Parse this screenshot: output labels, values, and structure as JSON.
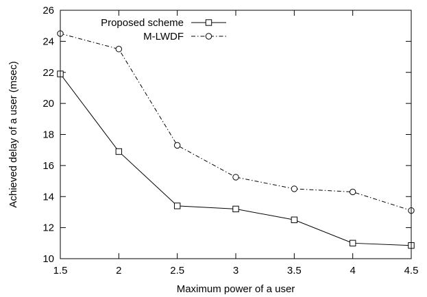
{
  "chart_data": {
    "type": "line",
    "title": "",
    "xlabel": "Maximum power of a user",
    "ylabel": "Achieved delay of a user (msec)",
    "xlim": [
      1.5,
      4.5
    ],
    "ylim": [
      10,
      26
    ],
    "xticks": [
      "1.5",
      "2",
      "2.5",
      "3",
      "3.5",
      "4",
      "4.5"
    ],
    "yticks": [
      "10",
      "12",
      "14",
      "16",
      "18",
      "20",
      "22",
      "24",
      "26"
    ],
    "grid": false,
    "legend_position": "top-left",
    "x": [
      1.5,
      2,
      2.5,
      3,
      3.5,
      4,
      4.5
    ],
    "series": [
      {
        "name": "Proposed scheme",
        "values": [
          21.9,
          16.9,
          13.4,
          13.2,
          12.5,
          11.0,
          10.85
        ],
        "line_style": "solid",
        "marker": "square",
        "color": "#000000"
      },
      {
        "name": "M-LWDF",
        "values": [
          24.5,
          23.5,
          17.3,
          15.25,
          14.5,
          14.3,
          13.1
        ],
        "line_style": "dash-dot",
        "marker": "circle",
        "color": "#000000"
      }
    ]
  }
}
